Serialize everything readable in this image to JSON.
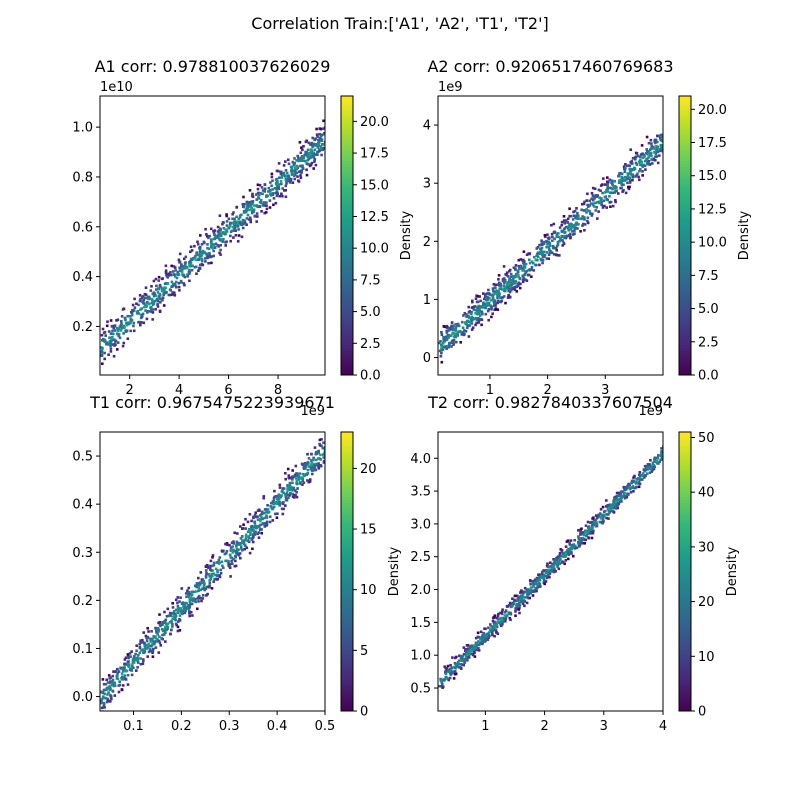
{
  "suptitle": "Correlation Train:['A1', 'A2', 'T1', 'T2']",
  "chart_data": [
    {
      "type": "heatmap",
      "title": "A1 corr: 0.978810037626029",
      "x_offset": "1e9",
      "y_offset": "1e10",
      "xlim": [
        0.8,
        9.9
      ],
      "ylim": [
        0.005,
        1.125
      ],
      "xticks": [
        2,
        4,
        6,
        8
      ],
      "xtick_labels": [
        "2",
        "4",
        "6",
        "8"
      ],
      "yticks": [
        0.2,
        0.4,
        0.6,
        0.8,
        1.0
      ],
      "ytick_labels": [
        "0.2",
        "0.4",
        "0.6",
        "0.8",
        "1.0"
      ],
      "band": {
        "x": [
          0.8,
          9.9
        ],
        "y": [
          0.12,
          0.96
        ],
        "width": 0.1
      },
      "colorbar": {
        "label": "Density",
        "min": 0,
        "max": 22,
        "ticks": [
          0.0,
          2.5,
          5.0,
          7.5,
          10.0,
          12.5,
          15.0,
          17.5,
          20.0
        ],
        "tick_labels": [
          "0.0",
          "2.5",
          "5.0",
          "7.5",
          "10.0",
          "12.5",
          "15.0",
          "17.5",
          "20.0"
        ]
      }
    },
    {
      "type": "heatmap",
      "title": "A2 corr: 0.9206517460769683",
      "x_offset": "1e9",
      "y_offset": "1e9",
      "xlim": [
        0.1,
        4.0
      ],
      "ylim": [
        -0.3,
        4.5
      ],
      "xticks": [
        1,
        2,
        3
      ],
      "xtick_labels": [
        "1",
        "2",
        "3"
      ],
      "yticks": [
        0,
        1,
        2,
        3,
        4
      ],
      "ytick_labels": [
        "0",
        "1",
        "2",
        "3",
        "4"
      ],
      "band": {
        "x": [
          0.1,
          4.0
        ],
        "y": [
          0.2,
          3.75
        ],
        "width": 0.4
      },
      "colorbar": {
        "label": "Density",
        "min": 0,
        "max": 21,
        "ticks": [
          0.0,
          2.5,
          5.0,
          7.5,
          10.0,
          12.5,
          15.0,
          17.5,
          20.0
        ],
        "tick_labels": [
          "0.0",
          "2.5",
          "5.0",
          "7.5",
          "10.0",
          "12.5",
          "15.0",
          "17.5",
          "20.0"
        ]
      }
    },
    {
      "type": "heatmap",
      "title": "T1 corr: 0.9675475223939671",
      "x_offset": "",
      "y_offset": "",
      "xlim": [
        0.03,
        0.5
      ],
      "ylim": [
        -0.03,
        0.55
      ],
      "xticks": [
        0.1,
        0.2,
        0.3,
        0.4,
        0.5
      ],
      "xtick_labels": [
        "0.1",
        "0.2",
        "0.3",
        "0.4",
        "0.5"
      ],
      "yticks": [
        0.0,
        0.1,
        0.2,
        0.3,
        0.4,
        0.5
      ],
      "ytick_labels": [
        "0.0",
        "0.1",
        "0.2",
        "0.3",
        "0.4",
        "0.5"
      ],
      "band": {
        "x": [
          0.03,
          0.5
        ],
        "y": [
          0.0,
          0.52
        ],
        "width": 0.05
      },
      "colorbar": {
        "label": "Density",
        "min": 0,
        "max": 23,
        "ticks": [
          0,
          5,
          10,
          15,
          20
        ],
        "tick_labels": [
          "0",
          "5",
          "10",
          "15",
          "20"
        ]
      }
    },
    {
      "type": "heatmap",
      "title": "T2 corr: 0.9827840337607504",
      "x_offset": "",
      "y_offset": "",
      "xlim": [
        0.2,
        4.0
      ],
      "ylim": [
        0.15,
        4.4
      ],
      "xticks": [
        1,
        2,
        3,
        4
      ],
      "xtick_labels": [
        "1",
        "2",
        "3",
        "4"
      ],
      "yticks": [
        0.5,
        1.0,
        1.5,
        2.0,
        2.5,
        3.0,
        3.5,
        4.0
      ],
      "ytick_labels": [
        "0.5",
        "1.0",
        "1.5",
        "2.0",
        "2.5",
        "3.0",
        "3.5",
        "4.0"
      ],
      "band": {
        "x": [
          0.2,
          4.0
        ],
        "y": [
          0.6,
          4.1
        ],
        "width": 0.2
      },
      "colorbar": {
        "label": "Density",
        "min": 0,
        "max": 51,
        "ticks": [
          0,
          10,
          20,
          30,
          40,
          50
        ],
        "tick_labels": [
          "0",
          "10",
          "20",
          "30",
          "40",
          "50"
        ]
      }
    }
  ],
  "colormap": [
    "#440154",
    "#482878",
    "#3e4a89",
    "#31688e",
    "#26828e",
    "#1f9e89",
    "#35b779",
    "#6ece58",
    "#b5de2b",
    "#fde725"
  ]
}
